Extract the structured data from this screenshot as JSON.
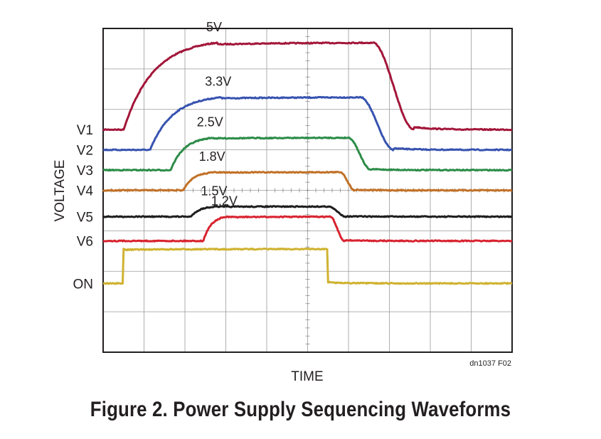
{
  "chart_data": {
    "type": "line",
    "title": "",
    "xlabel": "TIME",
    "ylabel": "VOLTAGE",
    "grid": true,
    "x_divisions": 10,
    "y_divisions": 8,
    "source_note": "dn1037 F02",
    "series": [
      {
        "name": "V1",
        "value_label": "5V",
        "color": "#a3163a",
        "rise_start": 0.5,
        "rise_end": 2.8,
        "fall_start": 6.6,
        "fall_end": 7.6,
        "low": 5.5,
        "high": 7.65
      },
      {
        "name": "V2",
        "value_label": "3.3V",
        "color": "#3753b0",
        "rise_start": 1.15,
        "rise_end": 2.9,
        "fall_start": 6.3,
        "fall_end": 7.1,
        "low": 5.0,
        "high": 6.3
      },
      {
        "name": "V3",
        "value_label": "2.5V",
        "color": "#2c8c48",
        "rise_start": 1.65,
        "rise_end": 2.7,
        "fall_start": 6.0,
        "fall_end": 6.55,
        "low": 4.5,
        "high": 5.3
      },
      {
        "name": "V4",
        "value_label": "1.8V",
        "color": "#c17026",
        "rise_start": 1.95,
        "rise_end": 2.75,
        "fall_start": 5.8,
        "fall_end": 6.15,
        "low": 4.0,
        "high": 4.45
      },
      {
        "name": "V5",
        "value_label": "1.5V",
        "color": "#1e1e1e",
        "rise_start": 2.15,
        "rise_end": 2.8,
        "fall_start": 5.5,
        "fall_end": 5.95,
        "low": 3.35,
        "high": 3.6
      },
      {
        "name": "V6",
        "value_label": "1.2V",
        "color": "#d8232f",
        "rise_start": 2.45,
        "rise_end": 3.05,
        "fall_start": 5.55,
        "fall_end": 5.9,
        "low": 2.75,
        "high": 3.35
      },
      {
        "name": "ON",
        "value_label": "",
        "color": "#cfb230",
        "rise_start": 0.48,
        "rise_end": 0.5,
        "fall_start": 5.5,
        "fall_end": 5.53,
        "low": 1.7,
        "high": 2.55
      }
    ]
  },
  "caption": "Figure 2. Power Supply Sequencing Waveforms"
}
